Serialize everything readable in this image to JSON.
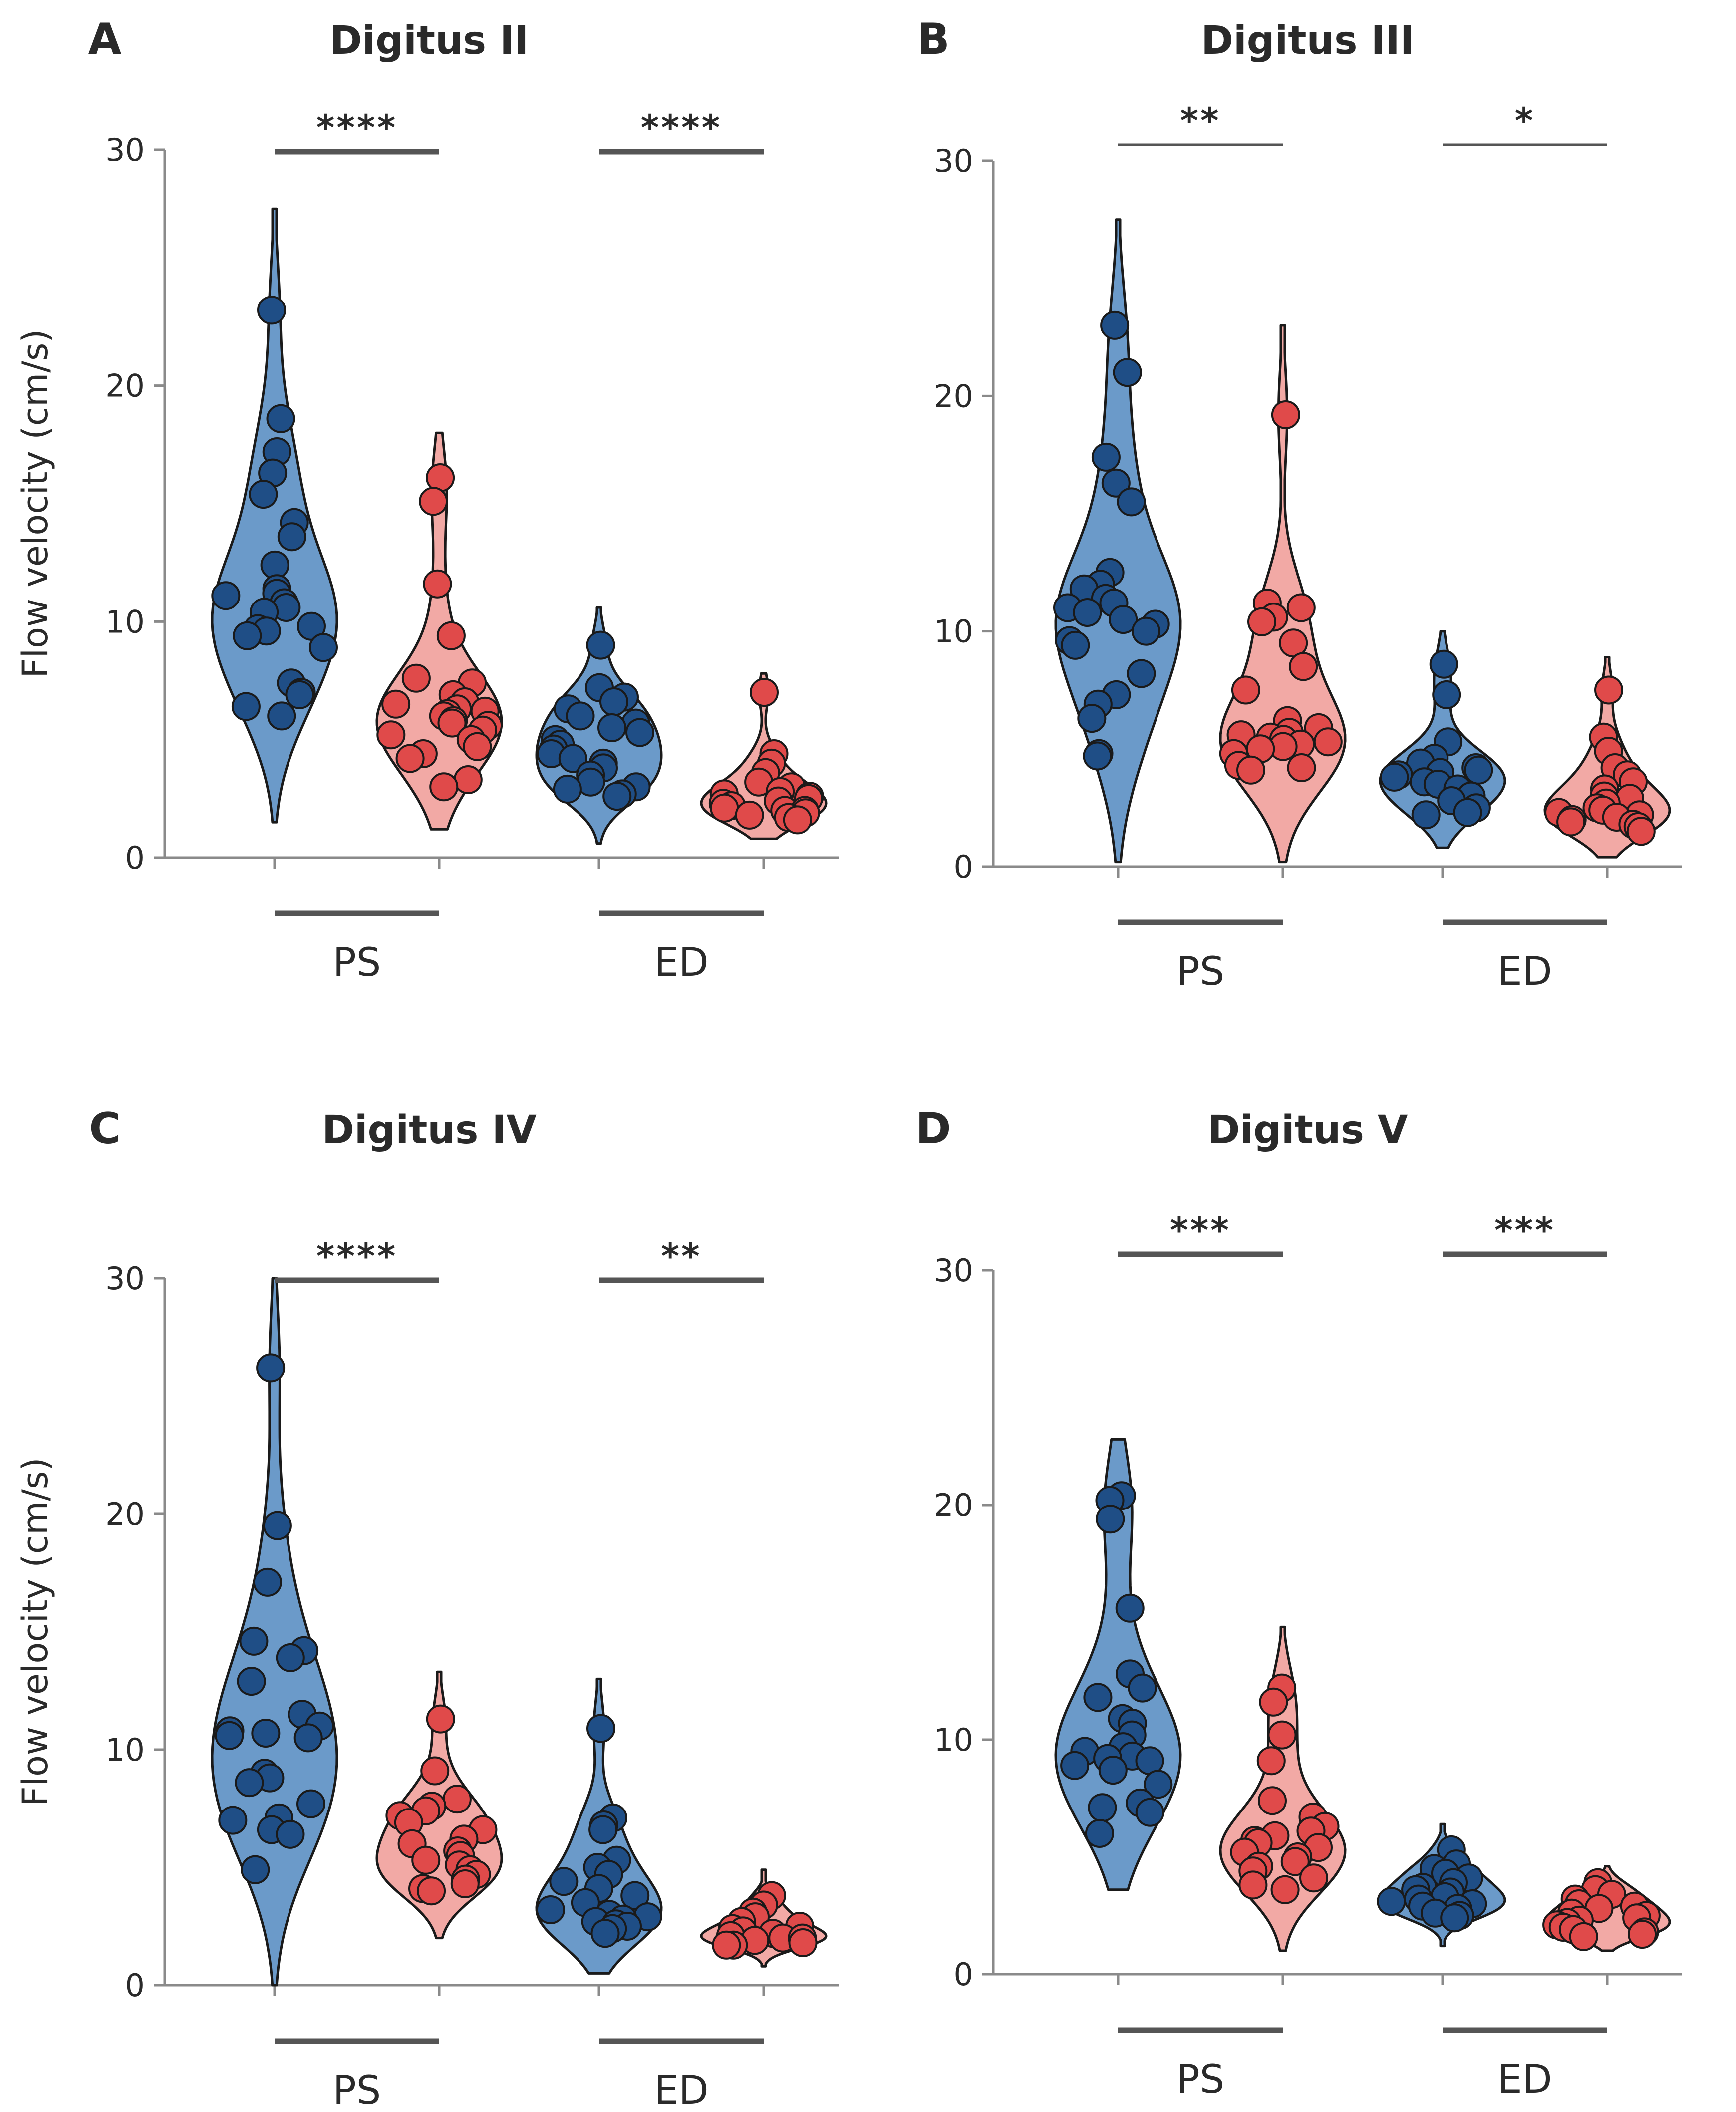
{
  "chart_data": [
    {
      "type": "violin",
      "panel_letter": "A",
      "title": "Digitus II",
      "ylabel": "Flow velocity (cm/s)",
      "ylim": [
        0,
        30
      ],
      "yticks": [
        "0",
        "10",
        "20",
        "30"
      ],
      "group_labels": [
        "PS",
        "ED"
      ],
      "significance": [
        "****",
        "****"
      ],
      "violins": [
        {
          "color": "blue",
          "range": [
            1.5,
            27.5
          ],
          "points": [
            23.2,
            18.6,
            17.2,
            16.3,
            15.4,
            14.2,
            13.6,
            12.4,
            11.4,
            11.2,
            11.1,
            10.8,
            10.6,
            10.4,
            9.8,
            9.7,
            9.6,
            9.4,
            8.9,
            7.4,
            7.0,
            6.9,
            6.4,
            6.0
          ]
        },
        {
          "color": "red",
          "range": [
            1.2,
            18.0
          ],
          "points": [
            16.1,
            15.1,
            11.6,
            9.4,
            7.6,
            7.4,
            6.9,
            6.6,
            6.5,
            6.3,
            6.2,
            6.1,
            6.0,
            5.8,
            5.7,
            5.6,
            5.4,
            5.2,
            5.0,
            4.7,
            4.4,
            4.2,
            3.3,
            3.0
          ]
        },
        {
          "color": "blue",
          "range": [
            0.6,
            10.6
          ],
          "points": [
            9.0,
            7.2,
            6.8,
            6.6,
            6.3,
            6.0,
            5.7,
            5.5,
            5.3,
            5.0,
            4.8,
            4.6,
            4.4,
            4.2,
            4.0,
            3.8,
            3.5,
            3.2,
            3.0,
            2.9,
            2.7,
            2.6
          ]
        },
        {
          "color": "red",
          "range": [
            0.8,
            7.8
          ],
          "points": [
            7.0,
            4.4,
            4.0,
            3.6,
            3.2,
            3.0,
            2.8,
            2.7,
            2.6,
            2.5,
            2.4,
            2.3,
            2.2,
            2.1,
            2.0,
            2.0,
            1.9,
            1.8,
            1.7,
            1.6
          ]
        }
      ]
    },
    {
      "type": "violin",
      "panel_letter": "B",
      "title": "Digitus III",
      "ylabel": "",
      "ylim": [
        0,
        30
      ],
      "yticks": [
        "0",
        "10",
        "20",
        "30"
      ],
      "group_labels": [
        "PS",
        "ED"
      ],
      "significance": [
        "**",
        "*"
      ],
      "violins": [
        {
          "color": "blue",
          "range": [
            0.2,
            27.5
          ],
          "points": [
            23.0,
            21.0,
            17.4,
            16.3,
            15.5,
            12.5,
            12.0,
            11.8,
            11.4,
            11.2,
            11.0,
            10.8,
            10.5,
            10.3,
            10.0,
            9.6,
            9.4,
            8.2,
            7.3,
            6.9,
            6.3,
            4.8,
            4.7
          ]
        },
        {
          "color": "red",
          "range": [
            0.2,
            23.0
          ],
          "points": [
            19.2,
            11.2,
            11.0,
            10.6,
            10.4,
            9.5,
            8.5,
            7.5,
            6.2,
            5.9,
            5.7,
            5.6,
            5.5,
            5.4,
            5.3,
            5.2,
            5.1,
            5.0,
            4.8,
            4.3,
            4.2,
            4.1
          ]
        },
        {
          "color": "blue",
          "range": [
            0.8,
            10.0
          ],
          "points": [
            8.6,
            7.3,
            5.3,
            4.6,
            4.4,
            4.2,
            4.1,
            4.0,
            3.9,
            3.8,
            3.6,
            3.5,
            3.3,
            3.0,
            2.8,
            2.5,
            2.3,
            2.2
          ]
        },
        {
          "color": "red",
          "range": [
            0.4,
            8.9
          ],
          "points": [
            7.5,
            5.5,
            4.9,
            4.2,
            3.9,
            3.6,
            3.3,
            3.0,
            2.9,
            2.7,
            2.5,
            2.4,
            2.3,
            2.2,
            2.1,
            2.0,
            1.9,
            1.8,
            1.7,
            1.5
          ]
        }
      ]
    },
    {
      "type": "violin",
      "panel_letter": "C",
      "title": "Digitus IV",
      "ylabel": "Flow velocity (cm/s)",
      "ylim": [
        0,
        30
      ],
      "yticks": [
        "0",
        "10",
        "20",
        "30"
      ],
      "group_labels": [
        "PS",
        "ED"
      ],
      "significance": [
        "****",
        "**"
      ],
      "violins": [
        {
          "color": "blue",
          "range": [
            0.0,
            30.0
          ],
          "points": [
            26.2,
            19.5,
            17.1,
            14.6,
            14.2,
            13.9,
            12.9,
            11.5,
            11.0,
            10.8,
            10.7,
            10.6,
            10.5,
            9.0,
            8.8,
            8.6,
            7.7,
            7.1,
            7.0,
            6.6,
            6.4,
            4.9
          ]
        },
        {
          "color": "red",
          "range": [
            2.0,
            13.3
          ],
          "points": [
            11.3,
            9.1,
            7.9,
            7.6,
            7.4,
            7.2,
            6.9,
            6.6,
            6.2,
            6.0,
            5.7,
            5.5,
            5.3,
            5.1,
            4.9,
            4.7,
            4.5,
            4.3,
            4.1,
            4.0
          ]
        },
        {
          "color": "blue",
          "range": [
            0.5,
            13.0
          ],
          "points": [
            10.9,
            7.1,
            6.8,
            6.6,
            5.3,
            5.0,
            4.7,
            4.4,
            4.1,
            3.8,
            3.5,
            3.2,
            3.0,
            2.9,
            2.8,
            2.7,
            2.6,
            2.5,
            2.4,
            2.2
          ]
        },
        {
          "color": "red",
          "range": [
            0.8,
            4.9
          ],
          "points": [
            3.8,
            3.4,
            3.1,
            2.9,
            2.7,
            2.5,
            2.4,
            2.3,
            2.2,
            2.1,
            2.0,
            2.0,
            1.9,
            1.8,
            1.7,
            1.7
          ]
        }
      ]
    },
    {
      "type": "violin",
      "panel_letter": "D",
      "title": "Digitus V",
      "ylabel": "",
      "ylim": [
        0,
        30
      ],
      "yticks": [
        "0",
        "10",
        "20",
        "30"
      ],
      "group_labels": [
        "PS",
        "ED"
      ],
      "significance": [
        "***",
        "***"
      ],
      "violins": [
        {
          "color": "blue",
          "range": [
            3.6,
            22.8
          ],
          "points": [
            20.4,
            20.2,
            19.4,
            15.6,
            12.8,
            12.2,
            11.8,
            10.9,
            10.7,
            10.2,
            9.7,
            9.5,
            9.3,
            9.2,
            9.1,
            8.9,
            8.7,
            8.1,
            7.3,
            7.1,
            6.9,
            6.0
          ]
        },
        {
          "color": "red",
          "range": [
            1.0,
            14.8
          ],
          "points": [
            12.2,
            11.6,
            10.2,
            9.1,
            7.4,
            6.7,
            6.3,
            6.1,
            5.9,
            5.7,
            5.6,
            5.4,
            5.2,
            5.0,
            4.8,
            4.6,
            4.4,
            4.1,
            3.8,
            3.6
          ]
        },
        {
          "color": "blue",
          "range": [
            1.2,
            6.4
          ],
          "points": [
            5.3,
            4.7,
            4.5,
            4.3,
            4.1,
            3.9,
            3.7,
            3.6,
            3.5,
            3.3,
            3.2,
            3.1,
            3.0,
            2.9,
            2.8,
            2.6,
            2.5,
            2.4
          ]
        },
        {
          "color": "red",
          "range": [
            1.0,
            4.6
          ],
          "points": [
            3.9,
            3.6,
            3.4,
            3.2,
            3.0,
            2.9,
            2.8,
            2.6,
            2.5,
            2.4,
            2.3,
            2.2,
            2.1,
            2.0,
            1.9,
            1.8,
            1.7,
            1.6
          ]
        }
      ]
    }
  ],
  "colors": {
    "blue_point": "#1f4e86",
    "blue_fill": "#6b9ac9",
    "red_point": "#e04a4a",
    "red_fill": "#f2a9a5",
    "outline": "#1a1a1a",
    "axis": "#8a8a8a",
    "bar": "#555555"
  }
}
